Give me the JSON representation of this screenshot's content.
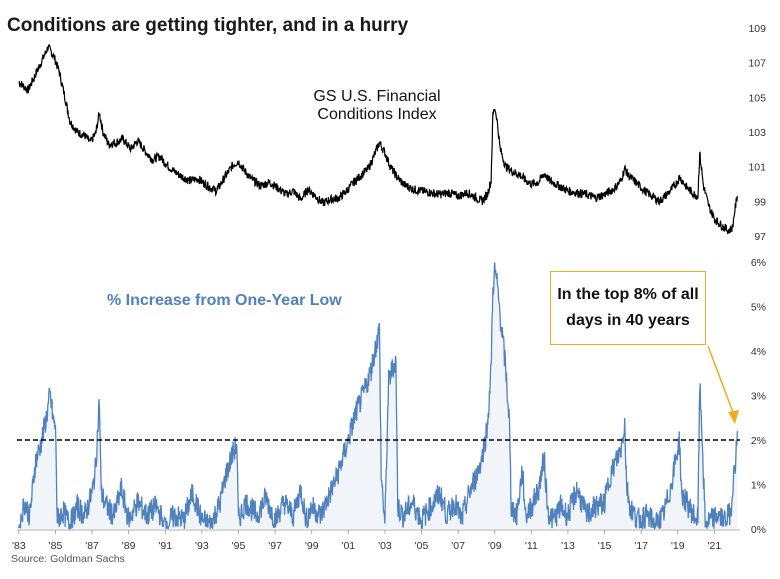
{
  "title": "Conditions are getting tighter, and in a hurry",
  "source": "Source: Goldman Sachs",
  "colors": {
    "top_line": "#000000",
    "bottom_line": "#4f81bd",
    "threshold": "#000000",
    "callout": "#f0ad1e"
  },
  "chart_data": [
    {
      "type": "line",
      "label_lines": [
        "GS U.S. Financial",
        "Conditions Index"
      ],
      "x_tick_labels": [
        "'83",
        "'85",
        "'87",
        "'89",
        "'91",
        "'93",
        "'95",
        "'97",
        "'99",
        "'01",
        "'03",
        "'05",
        "'07",
        "'09",
        "'11",
        "'13",
        "'15",
        "'17",
        "'19",
        "'21"
      ],
      "y_tick_labels": [
        "97",
        "99",
        "101",
        "103",
        "105",
        "107",
        "109"
      ],
      "ylim": [
        96.5,
        110
      ],
      "xlim": [
        1982.9,
        2022.4
      ],
      "series": [
        {
          "name": "GS U.S. Financial Conditions Index",
          "points": [
            [
              1983.0,
              105.9
            ],
            [
              1983.5,
              105.4
            ],
            [
              1983.9,
              106.3
            ],
            [
              1984.3,
              107.2
            ],
            [
              1984.6,
              107.9
            ],
            [
              1984.9,
              107.4
            ],
            [
              1985.2,
              106.5
            ],
            [
              1985.5,
              105.1
            ],
            [
              1985.8,
              103.6
            ],
            [
              1986.2,
              103.0
            ],
            [
              1986.6,
              102.8
            ],
            [
              1986.9,
              102.4
            ],
            [
              1987.2,
              102.9
            ],
            [
              1987.4,
              104.1
            ],
            [
              1987.6,
              103.0
            ],
            [
              1987.9,
              102.3
            ],
            [
              1988.3,
              102.4
            ],
            [
              1988.7,
              102.6
            ],
            [
              1989.1,
              102.0
            ],
            [
              1989.5,
              102.5
            ],
            [
              1989.9,
              101.9
            ],
            [
              1990.3,
              101.4
            ],
            [
              1990.7,
              101.6
            ],
            [
              1991.0,
              101.2
            ],
            [
              1991.4,
              100.8
            ],
            [
              1991.8,
              100.5
            ],
            [
              1992.3,
              100.2
            ],
            [
              1992.8,
              100.3
            ],
            [
              1993.3,
              99.9
            ],
            [
              1993.8,
              99.6
            ],
            [
              1994.2,
              100.3
            ],
            [
              1994.7,
              101.1
            ],
            [
              1995.0,
              101.3
            ],
            [
              1995.3,
              100.8
            ],
            [
              1995.7,
              100.3
            ],
            [
              1996.2,
              99.9
            ],
            [
              1996.7,
              100.1
            ],
            [
              1997.1,
              99.8
            ],
            [
              1997.6,
              99.4
            ],
            [
              1998.0,
              99.6
            ],
            [
              1998.4,
              99.1
            ],
            [
              1998.8,
              99.7
            ],
            [
              1999.2,
              99.3
            ],
            [
              1999.6,
              98.9
            ],
            [
              2000.0,
              99.1
            ],
            [
              2000.5,
              99.2
            ],
            [
              2000.9,
              99.6
            ],
            [
              2001.3,
              100.1
            ],
            [
              2001.8,
              100.6
            ],
            [
              2002.1,
              100.9
            ],
            [
              2002.4,
              101.6
            ],
            [
              2002.7,
              102.4
            ],
            [
              2003.0,
              101.8
            ],
            [
              2003.3,
              101.0
            ],
            [
              2003.6,
              100.5
            ],
            [
              2004.0,
              100.0
            ],
            [
              2004.5,
              99.7
            ],
            [
              2005.0,
              99.6
            ],
            [
              2005.5,
              99.5
            ],
            [
              2006.0,
              99.4
            ],
            [
              2006.5,
              99.5
            ],
            [
              2007.0,
              99.3
            ],
            [
              2007.5,
              99.5
            ],
            [
              2008.0,
              99.2
            ],
            [
              2008.3,
              99.0
            ],
            [
              2008.6,
              99.4
            ],
            [
              2008.8,
              100.2
            ],
            [
              2008.9,
              104.0
            ],
            [
              2009.0,
              104.4
            ],
            [
              2009.1,
              103.9
            ],
            [
              2009.3,
              102.0
            ],
            [
              2009.6,
              101.0
            ],
            [
              2010.0,
              100.7
            ],
            [
              2010.4,
              100.5
            ],
            [
              2010.7,
              100.2
            ],
            [
              2011.0,
              100.0
            ],
            [
              2011.4,
              100.1
            ],
            [
              2011.7,
              100.6
            ],
            [
              2012.0,
              100.2
            ],
            [
              2012.5,
              99.9
            ],
            [
              2013.0,
              99.6
            ],
            [
              2013.5,
              99.5
            ],
            [
              2014.0,
              99.4
            ],
            [
              2014.5,
              99.2
            ],
            [
              2015.0,
              99.4
            ],
            [
              2015.5,
              99.7
            ],
            [
              2015.9,
              100.2
            ],
            [
              2016.1,
              100.9
            ],
            [
              2016.3,
              100.5
            ],
            [
              2016.7,
              100.1
            ],
            [
              2017.2,
              99.6
            ],
            [
              2017.6,
              99.3
            ],
            [
              2018.0,
              99.0
            ],
            [
              2018.5,
              99.5
            ],
            [
              2018.9,
              100.0
            ],
            [
              2019.1,
              100.4
            ],
            [
              2019.5,
              99.8
            ],
            [
              2019.9,
              99.4
            ],
            [
              2020.1,
              99.3
            ],
            [
              2020.2,
              101.8
            ],
            [
              2020.4,
              99.9
            ],
            [
              2020.7,
              98.7
            ],
            [
              2021.0,
              98.0
            ],
            [
              2021.4,
              97.6
            ],
            [
              2021.8,
              97.3
            ],
            [
              2022.0,
              97.5
            ],
            [
              2022.1,
              98.4
            ],
            [
              2022.25,
              99.3
            ]
          ]
        }
      ]
    },
    {
      "type": "line",
      "label": "% Increase from One-Year Low",
      "x_tick_labels": [
        "'83",
        "'85",
        "'87",
        "'89",
        "'91",
        "'93",
        "'95",
        "'97",
        "'99",
        "'01",
        "'03",
        "'05",
        "'07",
        "'09",
        "'11",
        "'13",
        "'15",
        "'17",
        "'19",
        "'21"
      ],
      "y_tick_labels": [
        "0%",
        "1%",
        "2%",
        "3%",
        "4%",
        "5%",
        "6%"
      ],
      "ylim": [
        0,
        6
      ],
      "xlim": [
        1982.9,
        2022.4
      ],
      "threshold": 2.0,
      "annotation": {
        "lines": [
          "In the top 8% of all",
          "days in 40 years"
        ]
      },
      "series": [
        {
          "name": "% Increase from One-Year Low",
          "points": [
            [
              1983.0,
              0.0
            ],
            [
              1983.3,
              0.6
            ],
            [
              1983.6,
              0.3
            ],
            [
              1983.9,
              1.5
            ],
            [
              1984.2,
              1.9
            ],
            [
              1984.5,
              2.5
            ],
            [
              1984.7,
              3.0
            ],
            [
              1984.9,
              2.4
            ],
            [
              1985.0,
              2.3
            ],
            [
              1985.1,
              0.2
            ],
            [
              1985.4,
              0.4
            ],
            [
              1985.8,
              0.1
            ],
            [
              1986.2,
              0.5
            ],
            [
              1986.6,
              0.3
            ],
            [
              1987.0,
              0.8
            ],
            [
              1987.2,
              1.4
            ],
            [
              1987.4,
              2.9
            ],
            [
              1987.5,
              0.8
            ],
            [
              1987.8,
              0.5
            ],
            [
              1988.2,
              0.3
            ],
            [
              1988.6,
              0.9
            ],
            [
              1989.0,
              0.2
            ],
            [
              1989.5,
              0.6
            ],
            [
              1990.0,
              0.3
            ],
            [
              1990.5,
              0.5
            ],
            [
              1991.0,
              0.1
            ],
            [
              1991.5,
              0.3
            ],
            [
              1992.0,
              0.2
            ],
            [
              1992.5,
              0.8
            ],
            [
              1993.0,
              0.2
            ],
            [
              1993.5,
              0.1
            ],
            [
              1994.0,
              0.6
            ],
            [
              1994.3,
              1.2
            ],
            [
              1994.6,
              1.6
            ],
            [
              1994.9,
              1.9
            ],
            [
              1995.0,
              0.2
            ],
            [
              1995.4,
              0.6
            ],
            [
              1996.0,
              0.3
            ],
            [
              1996.5,
              0.7
            ],
            [
              1997.0,
              0.2
            ],
            [
              1997.5,
              0.6
            ],
            [
              1998.0,
              0.3
            ],
            [
              1998.4,
              0.9
            ],
            [
              1998.7,
              0.2
            ],
            [
              1999.0,
              0.5
            ],
            [
              1999.5,
              0.3
            ],
            [
              2000.0,
              0.8
            ],
            [
              2000.4,
              1.2
            ],
            [
              2000.7,
              1.6
            ],
            [
              2001.0,
              2.0
            ],
            [
              2001.4,
              2.6
            ],
            [
              2001.8,
              3.0
            ],
            [
              2002.2,
              3.5
            ],
            [
              2002.5,
              4.1
            ],
            [
              2002.7,
              4.5
            ],
            [
              2002.8,
              1.2
            ],
            [
              2003.0,
              0.1
            ],
            [
              2003.2,
              3.3
            ],
            [
              2003.4,
              3.6
            ],
            [
              2003.6,
              3.8
            ],
            [
              2003.7,
              0.5
            ],
            [
              2004.0,
              0.3
            ],
            [
              2004.5,
              0.6
            ],
            [
              2005.0,
              0.2
            ],
            [
              2005.5,
              0.5
            ],
            [
              2006.0,
              0.8
            ],
            [
              2006.4,
              0.3
            ],
            [
              2006.8,
              0.6
            ],
            [
              2007.2,
              0.2
            ],
            [
              2007.6,
              0.8
            ],
            [
              2008.0,
              1.2
            ],
            [
              2008.3,
              1.6
            ],
            [
              2008.6,
              2.3
            ],
            [
              2008.8,
              3.6
            ],
            [
              2008.9,
              5.4
            ],
            [
              2009.0,
              5.8
            ],
            [
              2009.1,
              5.6
            ],
            [
              2009.3,
              4.8
            ],
            [
              2009.6,
              3.6
            ],
            [
              2009.8,
              2.4
            ],
            [
              2009.9,
              0.5
            ],
            [
              2010.2,
              0.3
            ],
            [
              2010.5,
              1.3
            ],
            [
              2010.7,
              0.3
            ],
            [
              2011.0,
              0.5
            ],
            [
              2011.4,
              0.9
            ],
            [
              2011.7,
              1.6
            ],
            [
              2011.9,
              0.4
            ],
            [
              2012.2,
              0.2
            ],
            [
              2012.6,
              0.5
            ],
            [
              2013.0,
              0.3
            ],
            [
              2013.5,
              0.9
            ],
            [
              2014.0,
              0.3
            ],
            [
              2014.5,
              0.5
            ],
            [
              2015.0,
              0.6
            ],
            [
              2015.3,
              1.2
            ],
            [
              2015.6,
              1.5
            ],
            [
              2015.9,
              1.8
            ],
            [
              2016.1,
              2.4
            ],
            [
              2016.2,
              1.0
            ],
            [
              2016.4,
              0.5
            ],
            [
              2016.8,
              0.2
            ],
            [
              2017.3,
              0.3
            ],
            [
              2017.8,
              0.1
            ],
            [
              2018.2,
              0.3
            ],
            [
              2018.6,
              0.9
            ],
            [
              2018.9,
              1.6
            ],
            [
              2019.1,
              2.0
            ],
            [
              2019.2,
              0.8
            ],
            [
              2019.6,
              0.5
            ],
            [
              2019.9,
              0.3
            ],
            [
              2020.1,
              0.2
            ],
            [
              2020.2,
              3.2
            ],
            [
              2020.3,
              2.4
            ],
            [
              2020.5,
              0.1
            ],
            [
              2020.8,
              0.2
            ],
            [
              2021.2,
              0.3
            ],
            [
              2021.6,
              0.2
            ],
            [
              2021.9,
              0.4
            ],
            [
              2022.0,
              1.0
            ],
            [
              2022.1,
              1.3
            ],
            [
              2022.2,
              1.8
            ],
            [
              2022.25,
              2.2
            ]
          ]
        }
      ]
    }
  ]
}
